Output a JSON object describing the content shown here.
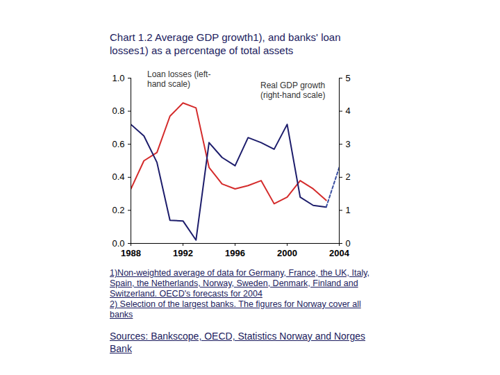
{
  "chart_data": {
    "type": "line",
    "title": "Chart 1.2 Average GDP growth1), and banks' loan losses1) as a percentage of total assets",
    "x": [
      1988,
      1989,
      1990,
      1991,
      1992,
      1993,
      1994,
      1995,
      1996,
      1997,
      1998,
      1999,
      2000,
      2001,
      2002,
      2003,
      2004
    ],
    "xlim": [
      1988,
      2004
    ],
    "xticks": [
      1988,
      1992,
      1996,
      2000,
      2004
    ],
    "ylim": [
      0,
      1
    ],
    "yticks": [
      {
        "value": 0,
        "label": "0.0"
      },
      0.2,
      0.4,
      0.6,
      0.8,
      {
        "value": 1,
        "label": "1.0"
      }
    ],
    "y2lim": [
      0,
      5
    ],
    "y2ticks": [
      0,
      1,
      2,
      3,
      4,
      5
    ],
    "series": [
      {
        "name": "Loan losses (left-hand scale)",
        "color": "#d42b2b",
        "values": [
          0.33,
          0.5,
          0.55,
          0.77,
          0.85,
          0.82,
          0.46,
          0.36,
          0.33,
          0.35,
          0.38,
          0.24,
          0.28,
          0.38,
          0.33,
          0.26,
          null
        ]
      },
      {
        "name": "Real GDP growth (right-hand scale)",
        "color": "#1c1c6b",
        "axis": "y2",
        "values": [
          3.6,
          3.25,
          2.45,
          0.7,
          0.68,
          0.1,
          3.05,
          2.6,
          2.35,
          3.2,
          3.05,
          2.85,
          3.6,
          1.4,
          1.15,
          1.1,
          null
        ]
      },
      {
        "name": "Real GDP growth (right-hand scale)",
        "color": "#3a4fa0",
        "axis": "y2",
        "line_style": "dashed",
        "values": [
          null,
          null,
          null,
          null,
          null,
          null,
          null,
          null,
          null,
          null,
          null,
          null,
          null,
          null,
          null,
          1.1,
          2.3
        ]
      }
    ],
    "notes": [
      "1)Non-weighted average of data for Germany, France, the UK, Italy, Spain, the Netherlands, Norway, Sweden, Denmark, Finland and Switzerland. OECD's forecasts for 2004",
      "2) Selection of the largest banks.  The figures for Norway cover all banks"
    ],
    "source": "Sources: Bankscope, OECD, Statistics Norway and Norges Bank"
  }
}
